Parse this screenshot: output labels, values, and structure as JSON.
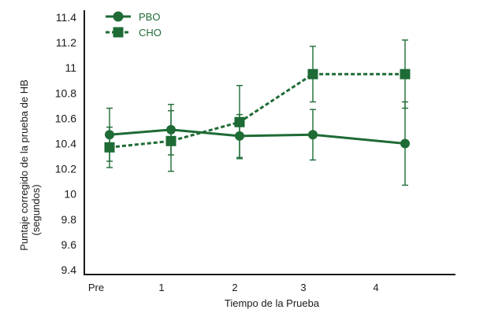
{
  "chart_data": {
    "type": "line",
    "categories": [
      "Pre",
      "1",
      "2",
      "3",
      "4"
    ],
    "xlabel": "Tiempo de la Prueba",
    "ylabel_lines": [
      "Puntaje corregido de la prueba de HB",
      "(segundos)"
    ],
    "yticks": [
      "9.4",
      "9.6",
      "9.8",
      "10",
      "10.2",
      "10.4",
      "10.6",
      "10.8",
      "11",
      "11.2",
      "11.4"
    ],
    "ylim": [
      9.4,
      11.4
    ],
    "grid": false,
    "legend_position": "top-left",
    "series": [
      {
        "name": "PBO",
        "marker": "circle",
        "line_style": "solid",
        "color": "#1e6b35",
        "values": [
          10.47,
          10.51,
          10.46,
          10.47,
          10.4
        ],
        "error": [
          0.21,
          0.2,
          0.17,
          0.2,
          0.33
        ]
      },
      {
        "name": "CHO",
        "marker": "square",
        "line_style": "dashed",
        "color": "#1e6b35",
        "values": [
          10.37,
          10.42,
          10.57,
          10.95,
          10.95
        ],
        "error": [
          0.16,
          0.24,
          0.29,
          0.22,
          0.27
        ]
      }
    ]
  }
}
